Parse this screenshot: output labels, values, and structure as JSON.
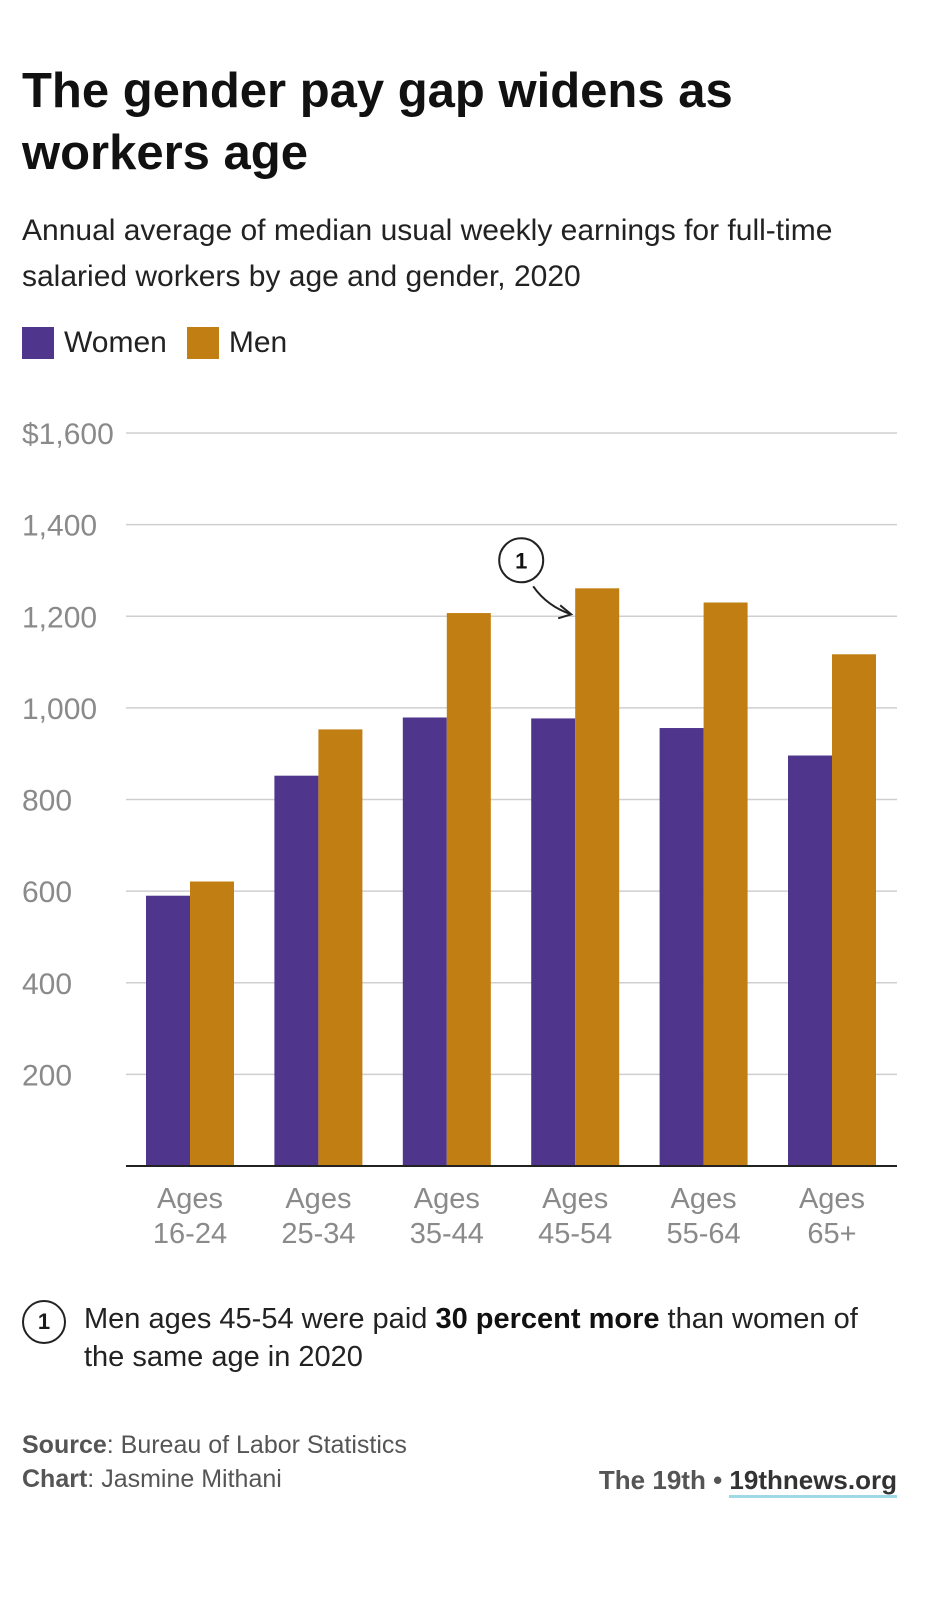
{
  "title": "The gender pay gap widens as workers age",
  "subtitle": "Annual average of median usual weekly earnings for full-time salaried workers by age and gender, 2020",
  "legend": [
    {
      "label": "Women",
      "color": "#4f358c"
    },
    {
      "label": "Men",
      "color": "#c17f13"
    }
  ],
  "chart_data": {
    "type": "bar",
    "categories": [
      [
        "Ages",
        "16-24"
      ],
      [
        "Ages",
        "25-34"
      ],
      [
        "Ages",
        "35-44"
      ],
      [
        "Ages",
        "45-54"
      ],
      [
        "Ages",
        "55-64"
      ],
      [
        "Ages",
        "65+"
      ]
    ],
    "series": [
      {
        "name": "Women",
        "color": "#4f358c",
        "values": [
          590,
          852,
          979,
          977,
          956,
          896
        ]
      },
      {
        "name": "Men",
        "color": "#c17f13",
        "values": [
          621,
          953,
          1207,
          1261,
          1230,
          1117
        ]
      }
    ],
    "yticks": [
      200,
      400,
      600,
      800,
      1000,
      1200,
      1400,
      1600
    ],
    "ytick_labels": [
      "200",
      "400",
      "600",
      "800",
      "1,000",
      "1,200",
      "1,400",
      "$1,600"
    ],
    "ylim": [
      0,
      1600
    ],
    "grid": true,
    "annotation": {
      "number": "1",
      "category_index": 3,
      "series": "Men"
    }
  },
  "footnote": {
    "number": "1",
    "text_before": "Men ages 45-54 were paid ",
    "text_bold": "30 percent more",
    "text_after": " than women of the same age in 2020"
  },
  "credits": {
    "source_label": "Source",
    "source_value": ": Bureau of Labor Statistics",
    "chart_label": "Chart",
    "chart_value": ": Jasmine Mithani"
  },
  "brand": {
    "name": "The 19th",
    "separator": " • ",
    "link": "19thnews.org"
  }
}
